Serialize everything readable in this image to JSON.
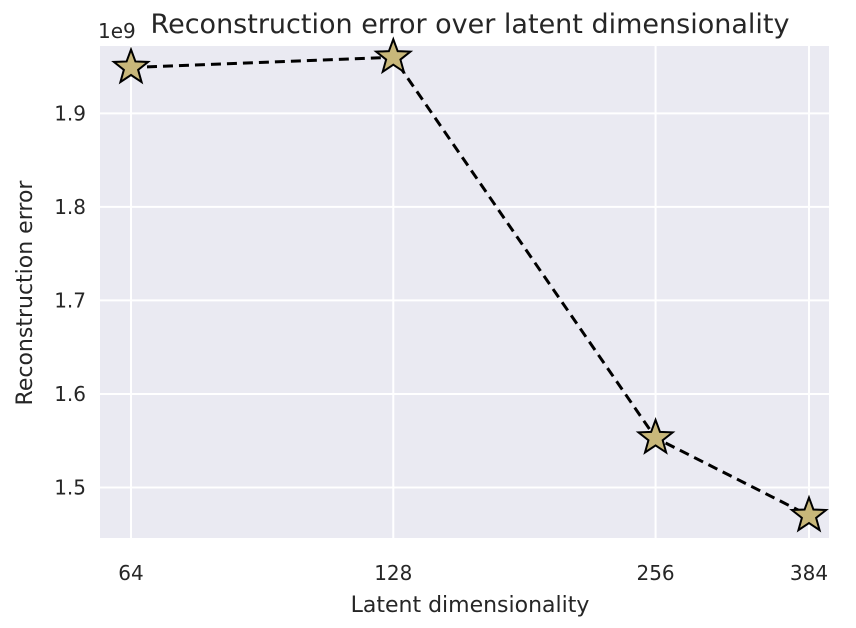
{
  "chart_data": {
    "type": "line",
    "title": "Reconstruction error over latent dimensionality",
    "xlabel": "Latent dimensionality",
    "ylabel": "Reconstruction error",
    "y_offset_label": "1e9",
    "x_tick_labels": [
      "64",
      "128",
      "256",
      "384"
    ],
    "y_tick_labels": [
      "1.5",
      "1.6",
      "1.7",
      "1.8",
      "1.9"
    ],
    "y_ticks": [
      1.5,
      1.6,
      1.7,
      1.8,
      1.9
    ],
    "x": [
      64,
      128,
      256,
      384
    ],
    "values": [
      1.949,
      1.96,
      1.553,
      1.47
    ],
    "y_unit_multiplier": 1000000000,
    "ylim": [
      1.446,
      1.972
    ],
    "xscale": "log2",
    "grid": true,
    "legend": false,
    "marker": "star",
    "line_style": "dashed",
    "colors": {
      "plot_background": "#eaeaf2",
      "grid": "#ffffff",
      "line": "#000000",
      "marker_fill": "#c8b77a",
      "marker_edge": "#000000",
      "text": "#262626"
    }
  }
}
